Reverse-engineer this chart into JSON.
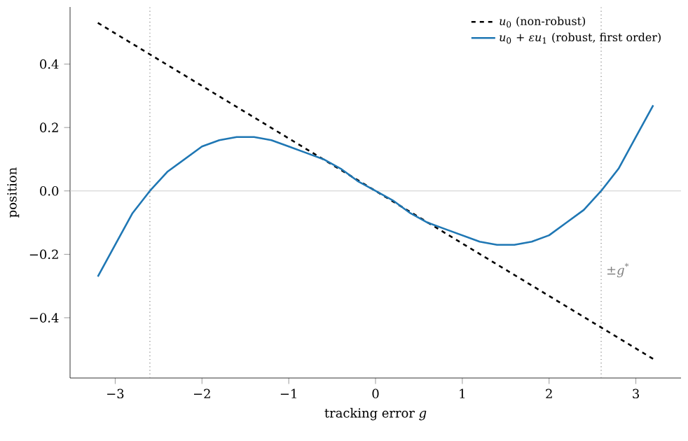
{
  "chart_data": {
    "type": "line",
    "xlabel": "tracking error *g*",
    "ylabel": "position",
    "x": [
      -3.2,
      -3.0,
      -2.8,
      -2.6,
      -2.4,
      -2.2,
      -2.0,
      -1.8,
      -1.6,
      -1.4,
      -1.2,
      -1.0,
      -0.8,
      -0.6,
      -0.4,
      -0.2,
      0.0,
      0.2,
      0.4,
      0.6,
      0.8,
      1.0,
      1.2,
      1.4,
      1.6,
      1.8,
      2.0,
      2.2,
      2.4,
      2.6,
      2.8,
      3.0,
      3.2
    ],
    "series": [
      {
        "name": "*u*$_{0}$ (non-robust)",
        "color": "#000000",
        "line_style": "dashed",
        "x": [
          -3.2,
          3.2
        ],
        "values": [
          0.53,
          -0.53
        ]
      },
      {
        "name": "*u*$_{0}$ + *εu*$_{1}$ (robust, first order)",
        "color": "#1f77b4",
        "line_style": "solid",
        "values": [
          -0.27,
          -0.17,
          -0.07,
          0.0,
          0.06,
          0.1,
          0.14,
          0.16,
          0.17,
          0.17,
          0.16,
          0.14,
          0.12,
          0.1,
          0.07,
          0.03,
          0.0,
          -0.03,
          -0.07,
          -0.1,
          -0.12,
          -0.14,
          -0.16,
          -0.17,
          -0.17,
          -0.16,
          -0.14,
          -0.1,
          -0.06,
          0.0,
          0.07,
          0.17,
          0.27
        ]
      }
    ],
    "xlim": [
      -3.52,
      3.52
    ],
    "ylim": [
      -0.59,
      0.58
    ],
    "xticks": [
      {
        "value": -3,
        "label": "−3"
      },
      {
        "value": -2,
        "label": "−2"
      },
      {
        "value": -1,
        "label": "−1"
      },
      0,
      1,
      2,
      3
    ],
    "yticks": [
      {
        "value": -0.4,
        "label": "−0.4"
      },
      {
        "value": -0.2,
        "label": "−0.2"
      },
      {
        "value": 0,
        "label": "0.0"
      },
      {
        "value": 0.2,
        "label": "0.2"
      },
      {
        "value": 0.4,
        "label": "0.4"
      }
    ],
    "ref_lines": [
      {
        "axis": "y",
        "value": 0,
        "color": "#cccccc",
        "line_style": "solid"
      },
      {
        "axis": "x",
        "value": -2.6,
        "color": "#808080",
        "line_style": "dotted"
      },
      {
        "axis": "x",
        "value": 2.6,
        "color": "#808080",
        "line_style": "dotted"
      }
    ],
    "annotations": [
      {
        "text": "±*g*$^{*}$",
        "x": 2.6,
        "y": -0.25
      }
    ],
    "legend": "top right",
    "grid": false,
    "marker": "none"
  }
}
